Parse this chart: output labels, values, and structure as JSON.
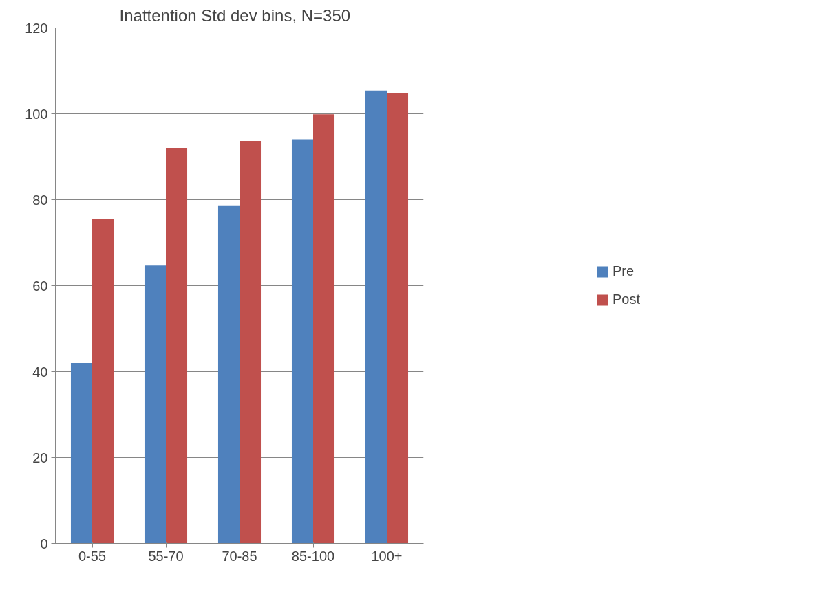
{
  "chart_data": {
    "type": "bar",
    "title": "Inattention Std dev bins,   N=350",
    "categories": [
      "0-55",
      "55-70",
      "70-85",
      "85-100",
      "100+"
    ],
    "series": [
      {
        "name": "Pre",
        "color": "#4f81bd",
        "values": [
          42,
          64.7,
          78.7,
          94.1,
          105.4
        ]
      },
      {
        "name": "Post",
        "color": "#c0504d",
        "values": [
          75.5,
          92,
          93.7,
          99.9,
          104.9
        ]
      }
    ],
    "ylim": [
      0,
      120
    ],
    "yticks": [
      0,
      20,
      40,
      60,
      80,
      100,
      120
    ],
    "grid": "y",
    "legend": "right"
  }
}
